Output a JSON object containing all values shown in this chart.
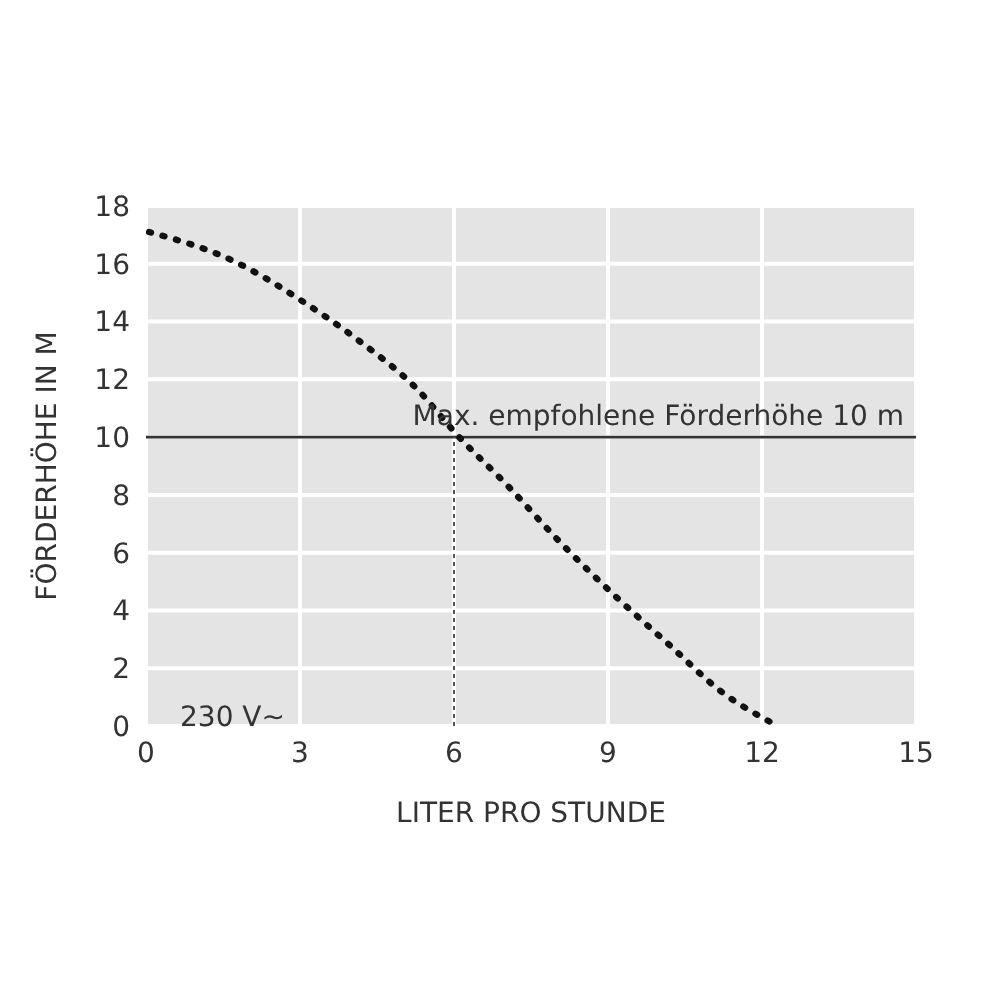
{
  "chart_data": {
    "type": "line",
    "xlabel": "LITER PRO STUNDE",
    "ylabel": "FÖRDERHÖHE IN M",
    "x": [
      0.06,
      1.7,
      3.05,
      4.1,
      5.26,
      6.1,
      7.0,
      8.1,
      9.2,
      10.2,
      11.2,
      12.2
    ],
    "series": [
      {
        "color": "#111111",
        "values": [
          17.1,
          16.1,
          14.7,
          13.4,
          11.7,
          10.0,
          8.4,
          6.3,
          4.4,
          2.8,
          1.2,
          0.1
        ]
      }
    ],
    "xlim": [
      0,
      15
    ],
    "xticks": [
      0,
      3,
      6,
      9,
      12,
      15
    ],
    "ylim": [
      0,
      18
    ],
    "yticks": [
      0,
      2,
      4,
      6,
      8,
      10,
      12,
      14,
      16,
      18
    ],
    "grid": true,
    "legend": false,
    "marker": "none",
    "line_style": "dotted",
    "ref_lines": [
      {
        "axis": "y",
        "value": 10,
        "label": "Max. empfohlene Förderhöhe 10 m",
        "color": "#333333",
        "line_style": "solid"
      },
      {
        "axis": "x",
        "value": 6,
        "color": "#555555",
        "line_style": "dotted"
      }
    ],
    "annotations": [
      "230 V~"
    ]
  }
}
